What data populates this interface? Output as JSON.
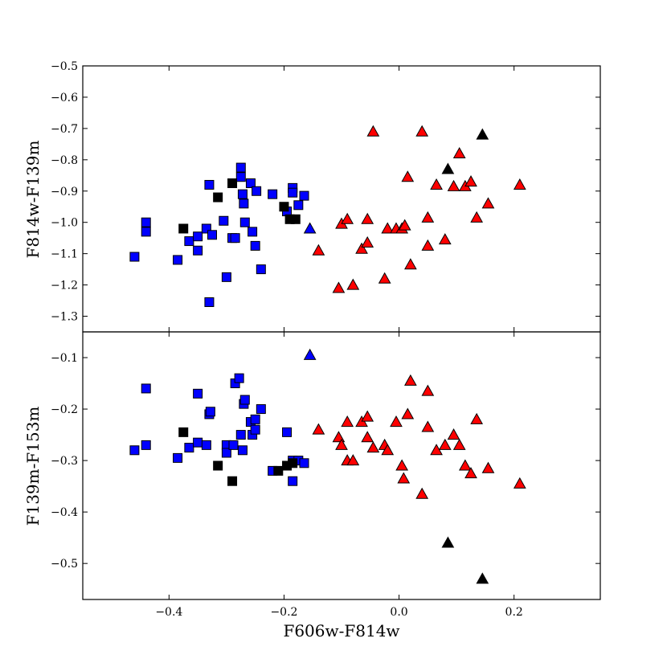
{
  "chart_data": [
    {
      "type": "scatter",
      "panel": "top",
      "ylabel": "F814w-F139m",
      "xlim": [
        -0.55,
        0.35
      ],
      "ylim": [
        -1.35,
        -0.5
      ],
      "y_inverted": true,
      "yticks": [
        -0.5,
        -0.6,
        -0.7,
        -0.8,
        -0.9,
        -1.0,
        -1.1,
        -1.2,
        -1.3
      ],
      "ytick_labels": [
        "−0.5",
        "−0.6",
        "−0.7",
        "−0.8",
        "−0.9",
        "−1.0",
        "−1.1",
        "−1.2",
        "−1.3"
      ],
      "series": [
        {
          "marker": "square",
          "color": "#0000ff",
          "points": [
            [
              -0.46,
              -1.11
            ],
            [
              -0.44,
              -1.0
            ],
            [
              -0.44,
              -1.03
            ],
            [
              -0.385,
              -1.12
            ],
            [
              -0.365,
              -1.06
            ],
            [
              -0.35,
              -1.045
            ],
            [
              -0.35,
              -1.09
            ],
            [
              -0.335,
              -1.02
            ],
            [
              -0.33,
              -0.88
            ],
            [
              -0.33,
              -1.255
            ],
            [
              -0.325,
              -1.04
            ],
            [
              -0.305,
              -0.995
            ],
            [
              -0.3,
              -1.175
            ],
            [
              -0.29,
              -1.05
            ],
            [
              -0.285,
              -1.05
            ],
            [
              -0.275,
              -0.825
            ],
            [
              -0.275,
              -0.855
            ],
            [
              -0.272,
              -0.91
            ],
            [
              -0.27,
              -0.94
            ],
            [
              -0.268,
              -1.0
            ],
            [
              -0.258,
              -0.875
            ],
            [
              -0.255,
              -1.03
            ],
            [
              -0.25,
              -1.075
            ],
            [
              -0.248,
              -0.9
            ],
            [
              -0.24,
              -1.15
            ],
            [
              -0.22,
              -0.91
            ],
            [
              -0.195,
              -0.965
            ],
            [
              -0.185,
              -0.89
            ],
            [
              -0.185,
              -0.905
            ],
            [
              -0.175,
              -0.945
            ],
            [
              -0.165,
              -0.915
            ]
          ]
        },
        {
          "marker": "square",
          "color": "#000000",
          "points": [
            [
              -0.375,
              -1.02
            ],
            [
              -0.315,
              -0.92
            ],
            [
              -0.29,
              -0.875
            ],
            [
              -0.2,
              -0.95
            ],
            [
              -0.19,
              -0.99
            ],
            [
              -0.18,
              -0.99
            ]
          ]
        },
        {
          "marker": "triangle",
          "color": "#ff0000",
          "points": [
            [
              -0.14,
              -1.09
            ],
            [
              -0.105,
              -1.21
            ],
            [
              -0.1,
              -1.005
            ],
            [
              -0.09,
              -0.99
            ],
            [
              -0.08,
              -1.2
            ],
            [
              -0.065,
              -1.085
            ],
            [
              -0.055,
              -1.065
            ],
            [
              -0.055,
              -0.99
            ],
            [
              -0.045,
              -0.71
            ],
            [
              -0.025,
              -1.18
            ],
            [
              -0.02,
              -1.02
            ],
            [
              -0.005,
              -1.02
            ],
            [
              0.005,
              -1.02
            ],
            [
              0.01,
              -1.01
            ],
            [
              0.015,
              -0.855
            ],
            [
              0.02,
              -1.135
            ],
            [
              0.04,
              -0.71
            ],
            [
              0.05,
              -0.985
            ],
            [
              0.05,
              -1.075
            ],
            [
              0.065,
              -0.88
            ],
            [
              0.08,
              -1.055
            ],
            [
              0.095,
              -0.885
            ],
            [
              0.105,
              -0.78
            ],
            [
              0.115,
              -0.885
            ],
            [
              0.125,
              -0.87
            ],
            [
              0.135,
              -0.985
            ],
            [
              0.155,
              -0.94
            ],
            [
              0.21,
              -0.88
            ]
          ]
        },
        {
          "marker": "triangle",
          "color": "#000000",
          "points": [
            [
              0.085,
              -0.83
            ],
            [
              0.145,
              -0.72
            ]
          ]
        },
        {
          "marker": "triangle",
          "color": "#0000ff",
          "points": [
            [
              -0.155,
              -1.02
            ]
          ]
        }
      ]
    },
    {
      "type": "scatter",
      "panel": "bottom",
      "xlabel": "F606w-F814w",
      "ylabel": "F139m-F153m",
      "xlim": [
        -0.55,
        0.35
      ],
      "ylim": [
        -0.57,
        -0.05
      ],
      "y_inverted": true,
      "xticks": [
        -0.4,
        -0.2,
        0.0,
        0.2
      ],
      "xtick_labels": [
        "−0.4",
        "−0.2",
        "0.0",
        "0.2"
      ],
      "yticks": [
        -0.1,
        -0.2,
        -0.3,
        -0.4,
        -0.5
      ],
      "ytick_labels": [
        "−0.1",
        "−0.2",
        "−0.3",
        "−0.4",
        "−0.5"
      ],
      "series": [
        {
          "marker": "square",
          "color": "#0000ff",
          "points": [
            [
              -0.46,
              -0.28
            ],
            [
              -0.44,
              -0.16
            ],
            [
              -0.44,
              -0.27
            ],
            [
              -0.385,
              -0.295
            ],
            [
              -0.365,
              -0.275
            ],
            [
              -0.35,
              -0.17
            ],
            [
              -0.35,
              -0.265
            ],
            [
              -0.335,
              -0.27
            ],
            [
              -0.33,
              -0.21
            ],
            [
              -0.328,
              -0.205
            ],
            [
              -0.3,
              -0.27
            ],
            [
              -0.3,
              -0.285
            ],
            [
              -0.288,
              -0.27
            ],
            [
              -0.285,
              -0.15
            ],
            [
              -0.278,
              -0.14
            ],
            [
              -0.275,
              -0.25
            ],
            [
              -0.272,
              -0.28
            ],
            [
              -0.27,
              -0.19
            ],
            [
              -0.268,
              -0.182
            ],
            [
              -0.258,
              -0.225
            ],
            [
              -0.255,
              -0.25
            ],
            [
              -0.25,
              -0.22
            ],
            [
              -0.25,
              -0.24
            ],
            [
              -0.24,
              -0.2
            ],
            [
              -0.22,
              -0.32
            ],
            [
              -0.195,
              -0.245
            ],
            [
              -0.185,
              -0.3
            ],
            [
              -0.185,
              -0.34
            ],
            [
              -0.175,
              -0.3
            ],
            [
              -0.165,
              -0.305
            ]
          ]
        },
        {
          "marker": "square",
          "color": "#000000",
          "points": [
            [
              -0.375,
              -0.245
            ],
            [
              -0.315,
              -0.31
            ],
            [
              -0.29,
              -0.34
            ],
            [
              -0.21,
              -0.32
            ],
            [
              -0.195,
              -0.31
            ],
            [
              -0.185,
              -0.305
            ]
          ]
        },
        {
          "marker": "triangle",
          "color": "#ff0000",
          "points": [
            [
              -0.14,
              -0.24
            ],
            [
              -0.105,
              -0.255
            ],
            [
              -0.1,
              -0.27
            ],
            [
              -0.09,
              -0.225
            ],
            [
              -0.09,
              -0.3
            ],
            [
              -0.08,
              -0.3
            ],
            [
              -0.065,
              -0.225
            ],
            [
              -0.055,
              -0.215
            ],
            [
              -0.055,
              -0.255
            ],
            [
              -0.045,
              -0.275
            ],
            [
              -0.025,
              -0.27
            ],
            [
              -0.02,
              -0.28
            ],
            [
              -0.005,
              -0.225
            ],
            [
              0.005,
              -0.31
            ],
            [
              0.008,
              -0.335
            ],
            [
              0.015,
              -0.21
            ],
            [
              0.02,
              -0.145
            ],
            [
              0.04,
              -0.365
            ],
            [
              0.05,
              -0.165
            ],
            [
              0.05,
              -0.235
            ],
            [
              0.065,
              -0.28
            ],
            [
              0.08,
              -0.27
            ],
            [
              0.095,
              -0.25
            ],
            [
              0.105,
              -0.27
            ],
            [
              0.115,
              -0.31
            ],
            [
              0.125,
              -0.325
            ],
            [
              0.135,
              -0.22
            ],
            [
              0.155,
              -0.315
            ],
            [
              0.21,
              -0.345
            ]
          ]
        },
        {
          "marker": "triangle",
          "color": "#000000",
          "points": [
            [
              0.085,
              -0.46
            ],
            [
              0.145,
              -0.53
            ]
          ]
        },
        {
          "marker": "triangle",
          "color": "#0000ff",
          "points": [
            [
              -0.155,
              -0.095
            ]
          ]
        }
      ]
    }
  ]
}
